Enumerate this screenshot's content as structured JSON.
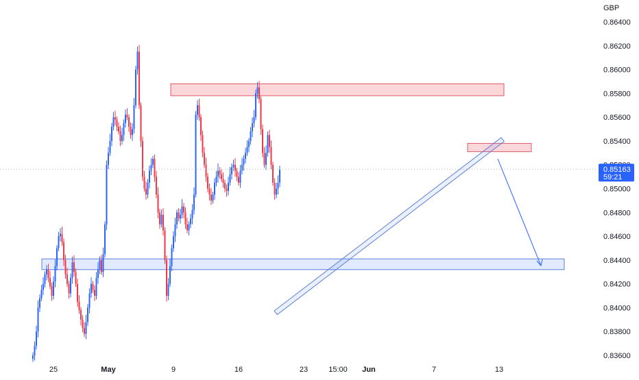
{
  "chart_data": {
    "type": "candlestick",
    "currency": "GBP",
    "ylim": [
      0.835,
      0.8655
    ],
    "y_ticks": [
      "0.86400",
      "0.86200",
      "0.86000",
      "0.85800",
      "0.85600",
      "0.85400",
      "0.85200",
      "0.85000",
      "0.84800",
      "0.84600",
      "0.84400",
      "0.84200",
      "0.84000",
      "0.83800",
      "0.83600"
    ],
    "x_ticks": [
      {
        "label": "25",
        "bold": false,
        "slot": 12
      },
      {
        "label": "May",
        "bold": true,
        "slot": 44
      },
      {
        "label": "9",
        "bold": false,
        "slot": 82
      },
      {
        "label": "16",
        "bold": false,
        "slot": 120
      },
      {
        "label": "23",
        "bold": false,
        "slot": 158
      },
      {
        "label": "15:00",
        "bold": false,
        "slot": 178
      },
      {
        "label": "Jun",
        "bold": true,
        "slot": 196
      },
      {
        "label": "7",
        "bold": false,
        "slot": 234
      },
      {
        "label": "13",
        "bold": false,
        "slot": 272
      }
    ],
    "current_price": "0.85163",
    "countdown": "59:21",
    "colors": {
      "up": "#2962ff",
      "down": "#f23645",
      "zone_red_fill": "#f2364533",
      "zone_blue_fill": "#2962ff22",
      "price_tag": "#2962ff"
    },
    "candles_close": [
      0.836,
      0.8368,
      0.838,
      0.84,
      0.8408,
      0.8415,
      0.842,
      0.8428,
      0.8432,
      0.8425,
      0.8418,
      0.841,
      0.8422,
      0.8435,
      0.845,
      0.846,
      0.8462,
      0.8455,
      0.844,
      0.8428,
      0.842,
      0.8412,
      0.8425,
      0.8438,
      0.843,
      0.842,
      0.8405,
      0.8398,
      0.839,
      0.8383,
      0.8378,
      0.8388,
      0.84,
      0.8412,
      0.842,
      0.8415,
      0.841,
      0.8425,
      0.8432,
      0.844,
      0.843,
      0.8445,
      0.847,
      0.852,
      0.853,
      0.854,
      0.8552,
      0.856,
      0.8558,
      0.8552,
      0.8548,
      0.854,
      0.8545,
      0.8555,
      0.8562,
      0.856,
      0.8552,
      0.8545,
      0.855,
      0.857,
      0.86,
      0.8615,
      0.857,
      0.854,
      0.851,
      0.85,
      0.8495,
      0.8505,
      0.8515,
      0.852,
      0.8525,
      0.851,
      0.8495,
      0.848,
      0.847,
      0.8478,
      0.8465,
      0.844,
      0.841,
      0.842,
      0.8435,
      0.845,
      0.846,
      0.847,
      0.848,
      0.8475,
      0.8478,
      0.8485,
      0.848,
      0.847,
      0.8465,
      0.847,
      0.8475,
      0.8482,
      0.8495,
      0.8562,
      0.857,
      0.856,
      0.8545,
      0.853,
      0.852,
      0.851,
      0.85,
      0.8495,
      0.849,
      0.8495,
      0.8505,
      0.851,
      0.8515,
      0.8512,
      0.8508,
      0.8505,
      0.85,
      0.8498,
      0.8505,
      0.8512,
      0.8518,
      0.852,
      0.8515,
      0.851,
      0.8505,
      0.8515,
      0.852,
      0.8525,
      0.853,
      0.8535,
      0.854,
      0.8548,
      0.8555,
      0.856,
      0.858,
      0.8585,
      0.8575,
      0.855,
      0.853,
      0.852,
      0.853,
      0.8545,
      0.8535,
      0.852,
      0.8505,
      0.8495,
      0.85,
      0.8505,
      0.8516
    ]
  },
  "overlays": {
    "resistance_zone": [
      0.8578,
      0.8588
    ],
    "support_zone": [
      0.8432,
      0.8441
    ],
    "retest_zone": [
      0.8531,
      0.8538
    ]
  }
}
